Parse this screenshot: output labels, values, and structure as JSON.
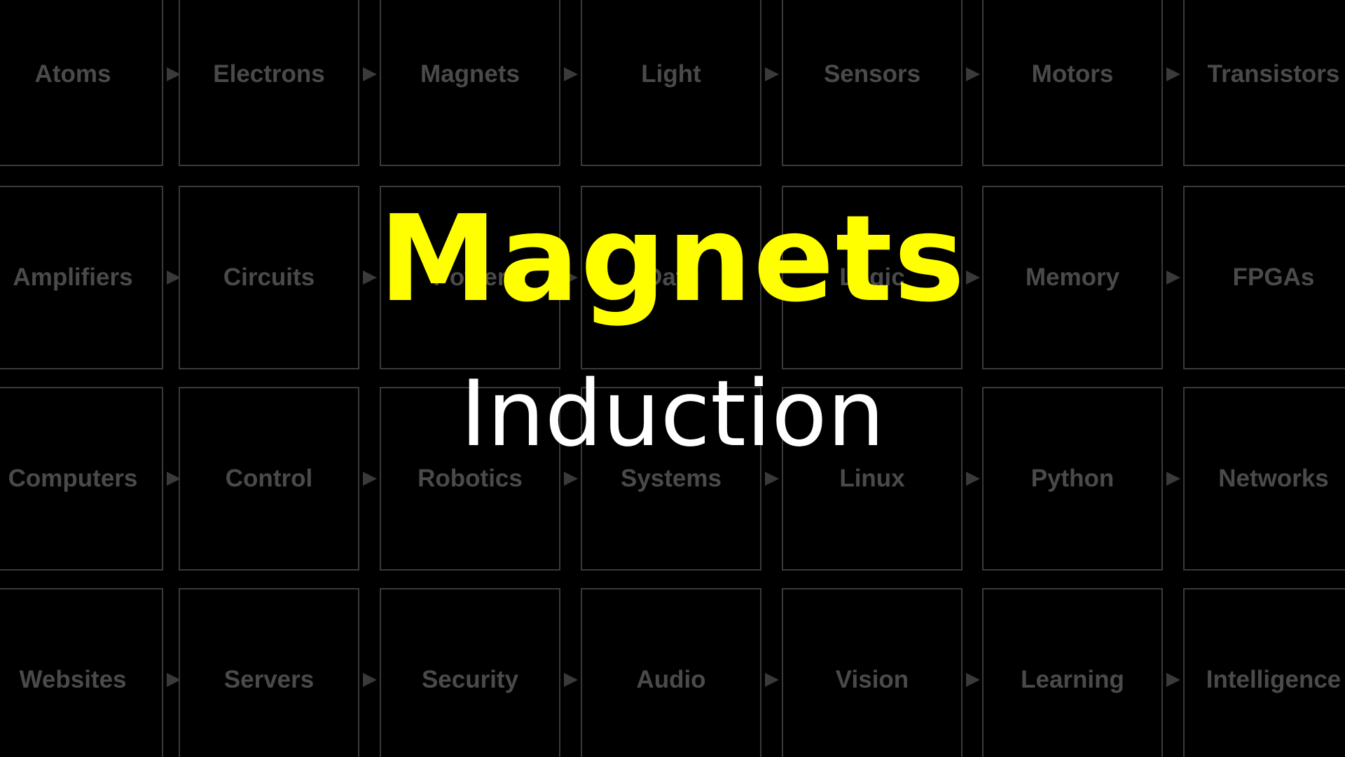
{
  "grid": {
    "rows": [
      [
        "Atoms",
        "Electrons",
        "Magnets",
        "Light",
        "Sensors",
        "Motors",
        "Transistors"
      ],
      [
        "Amplifiers",
        "Circuits",
        "Power",
        "Data",
        "Logic",
        "Memory",
        "FPGAs"
      ],
      [
        "Computers",
        "Control",
        "Robotics",
        "Systems",
        "Linux",
        "Python",
        "Networks"
      ],
      [
        "Websites",
        "Servers",
        "Security",
        "Audio",
        "Vision",
        "Learning",
        "Intelligence"
      ]
    ]
  },
  "overlay": {
    "title": "Magnets",
    "subtitle": "Induction"
  },
  "colors": {
    "background": "#000000",
    "tile_border": "#3a3a3a",
    "tile_text": "#4a4a4a",
    "title": "#ffff00",
    "subtitle": "#ffffff"
  }
}
